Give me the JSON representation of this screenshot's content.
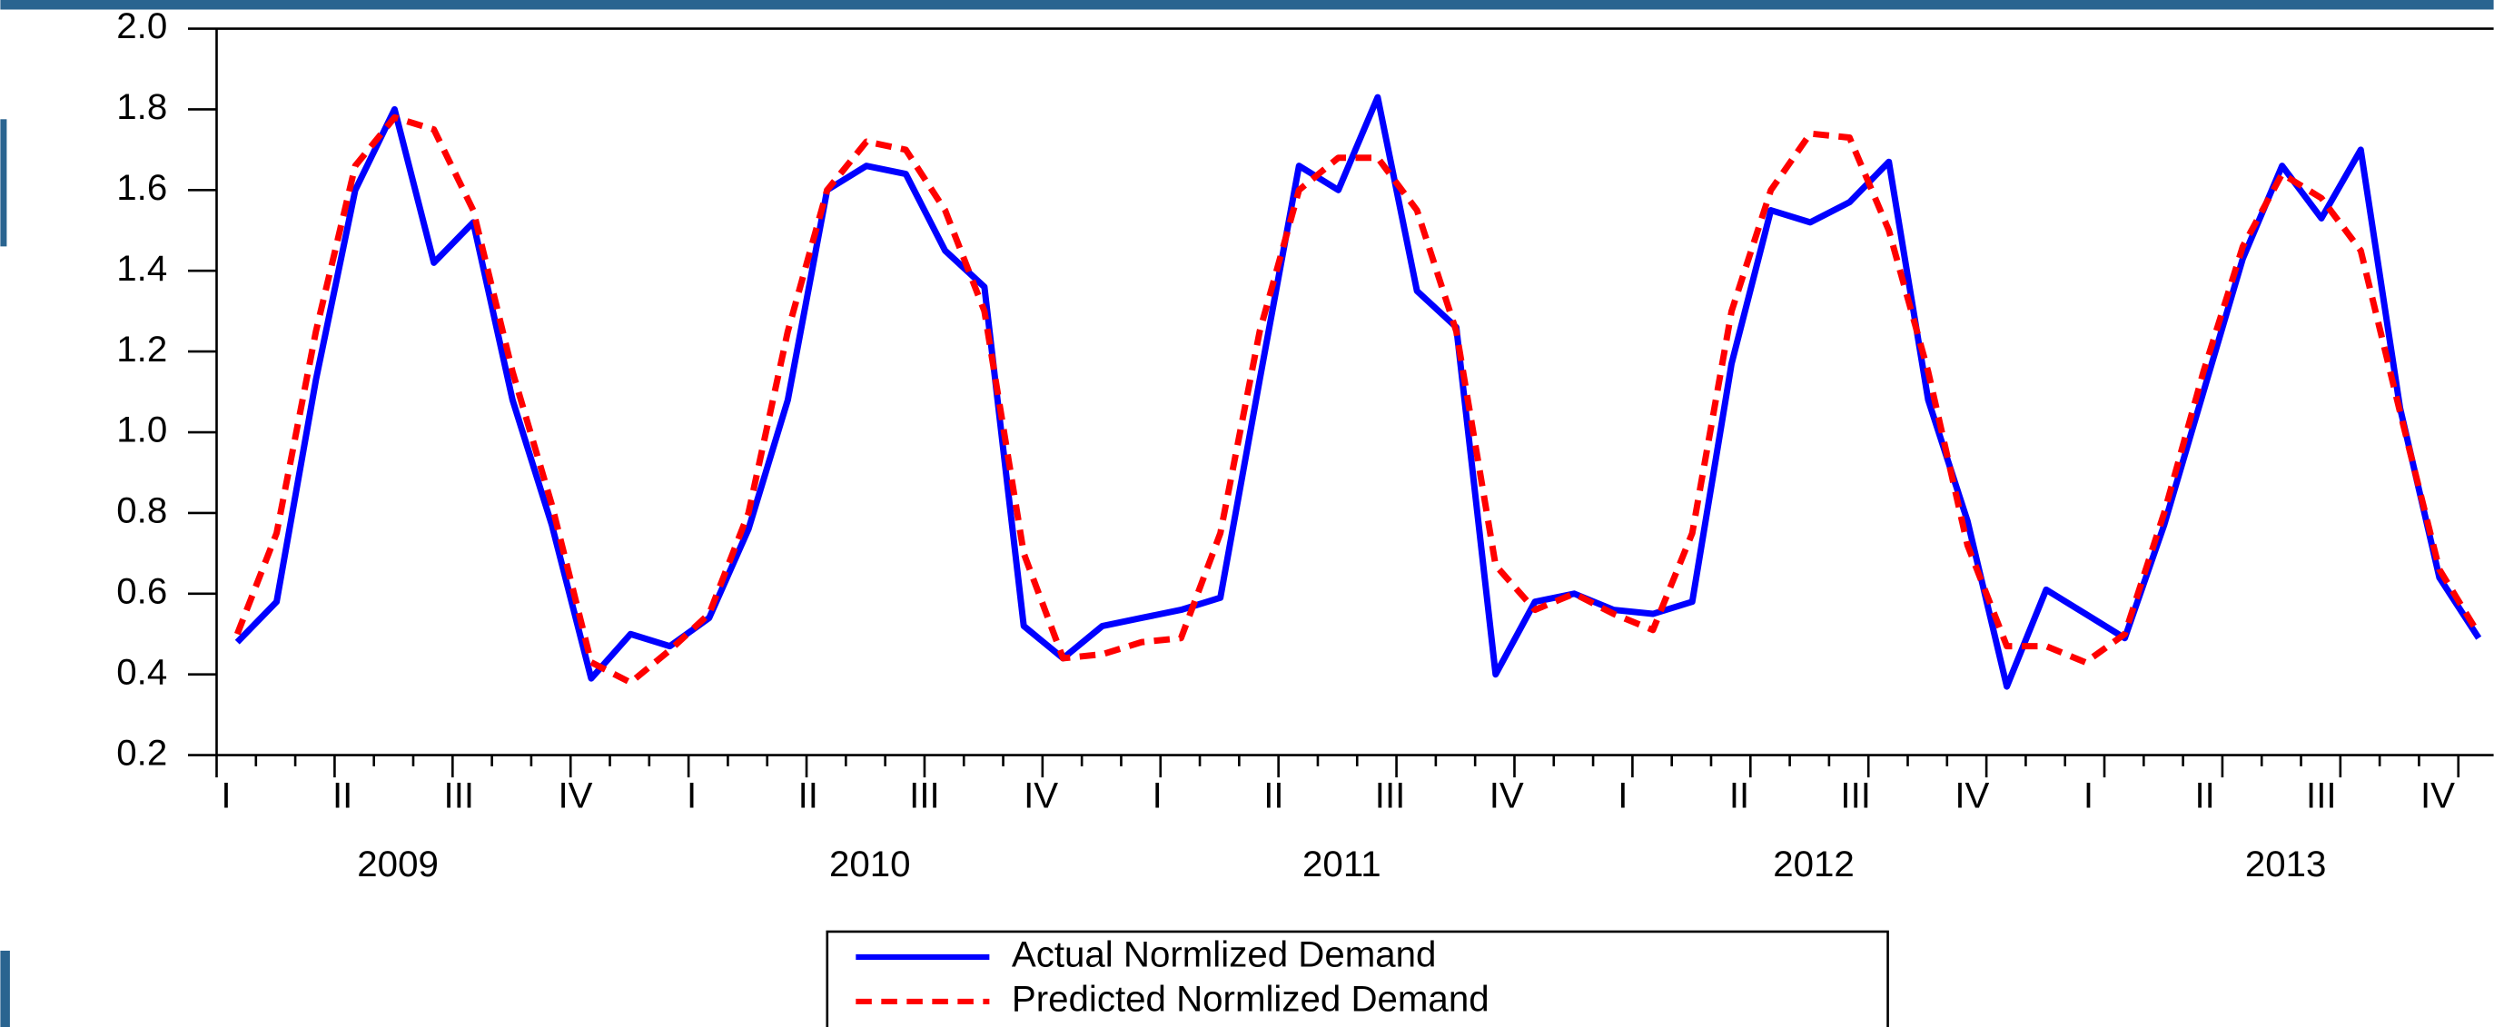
{
  "chart_data": {
    "type": "line",
    "quarter_labels": [
      "I",
      "II",
      "III",
      "IV",
      "I",
      "II",
      "III",
      "IV",
      "I",
      "II",
      "III",
      "IV",
      "I",
      "II",
      "III",
      "IV",
      "I",
      "II",
      "III",
      "IV"
    ],
    "year_labels": [
      "2009",
      "2010",
      "2011",
      "2012",
      "2013"
    ],
    "series": [
      {
        "name": "Actual Normlized Demand",
        "color": "#0000ff",
        "dash": "solid",
        "values": [
          0.48,
          0.58,
          1.13,
          1.6,
          1.8,
          1.42,
          1.52,
          1.08,
          0.77,
          0.39,
          0.5,
          0.47,
          0.54,
          0.76,
          1.08,
          1.6,
          1.66,
          1.64,
          1.45,
          1.36,
          0.52,
          0.44,
          0.52,
          0.54,
          0.56,
          0.59,
          1.13,
          1.66,
          1.6,
          1.83,
          1.35,
          1.26,
          0.4,
          0.58,
          0.6,
          0.56,
          0.55,
          0.58,
          1.17,
          1.55,
          1.52,
          1.57,
          1.67,
          1.08,
          0.78,
          0.37,
          0.61,
          0.55,
          0.49,
          0.77,
          1.1,
          1.43,
          1.66,
          1.53,
          1.7,
          1.06,
          0.64,
          0.49
        ]
      },
      {
        "name": "Predicted Normlized Demand",
        "color": "#ff0000",
        "dash": "dashed",
        "values": [
          0.5,
          0.75,
          1.25,
          1.66,
          1.78,
          1.75,
          1.55,
          1.15,
          0.82,
          0.43,
          0.38,
          0.46,
          0.55,
          0.8,
          1.25,
          1.6,
          1.72,
          1.7,
          1.55,
          1.3,
          0.7,
          0.44,
          0.45,
          0.48,
          0.49,
          0.75,
          1.25,
          1.6,
          1.68,
          1.68,
          1.55,
          1.25,
          0.67,
          0.56,
          0.6,
          0.55,
          0.51,
          0.75,
          1.3,
          1.6,
          1.74,
          1.73,
          1.5,
          1.15,
          0.72,
          0.47,
          0.47,
          0.43,
          0.5,
          0.8,
          1.15,
          1.46,
          1.64,
          1.58,
          1.45,
          1.05,
          0.66,
          0.5
        ]
      }
    ],
    "ylim": [
      0.2,
      2.0
    ],
    "yticks": [
      0.2,
      0.4,
      0.6,
      0.8,
      {
        "value": 1,
        "label": "1.0"
      },
      1.2,
      1.4,
      1.6,
      1.8,
      {
        "value": 2,
        "label": "2.0"
      }
    ],
    "legend": "bottom"
  }
}
